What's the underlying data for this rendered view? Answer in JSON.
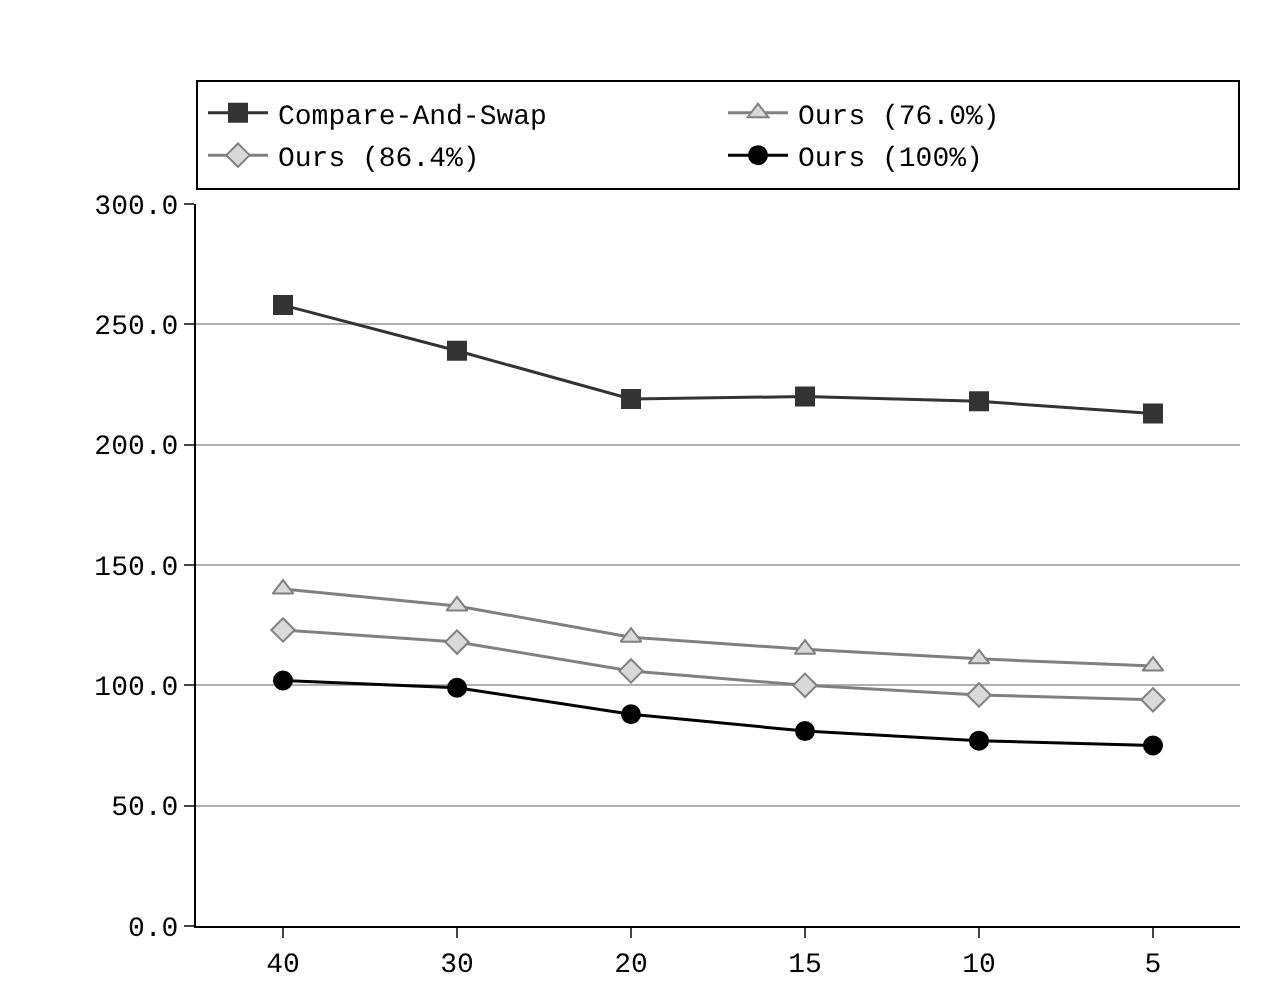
{
  "chart_data": {
    "type": "line",
    "categories": [
      "40",
      "30",
      "20",
      "15",
      "10",
      "5"
    ],
    "series": [
      {
        "name": "Compare-And-Swap",
        "color": "#333333",
        "marker": "square",
        "values": [
          258,
          239,
          219,
          220,
          218,
          213
        ]
      },
      {
        "name": "Ours (76.0%)",
        "color": "#808080",
        "marker": "triangle",
        "values": [
          140,
          133,
          120,
          115,
          111,
          108
        ]
      },
      {
        "name": "Ours (86.4%)",
        "color": "#808080",
        "marker": "diamond",
        "values": [
          123,
          118,
          106,
          100,
          96,
          94
        ]
      },
      {
        "name": "Ours (100%)",
        "color": "#000000",
        "marker": "circle",
        "values": [
          102,
          99,
          88,
          81,
          77,
          75
        ]
      }
    ],
    "ylim": [
      0,
      300
    ],
    "yticks": [
      {
        "value": 0,
        "label": "0.0"
      },
      {
        "value": 50,
        "label": "50.0"
      },
      {
        "value": 100,
        "label": "100.0"
      },
      {
        "value": 150,
        "label": "150.0"
      },
      {
        "value": 200,
        "label": "200.0"
      },
      {
        "value": 250,
        "label": "250.0"
      },
      {
        "value": 300,
        "label": "300.0"
      }
    ],
    "grid": "y",
    "legend": "top",
    "line_style": "solid"
  }
}
